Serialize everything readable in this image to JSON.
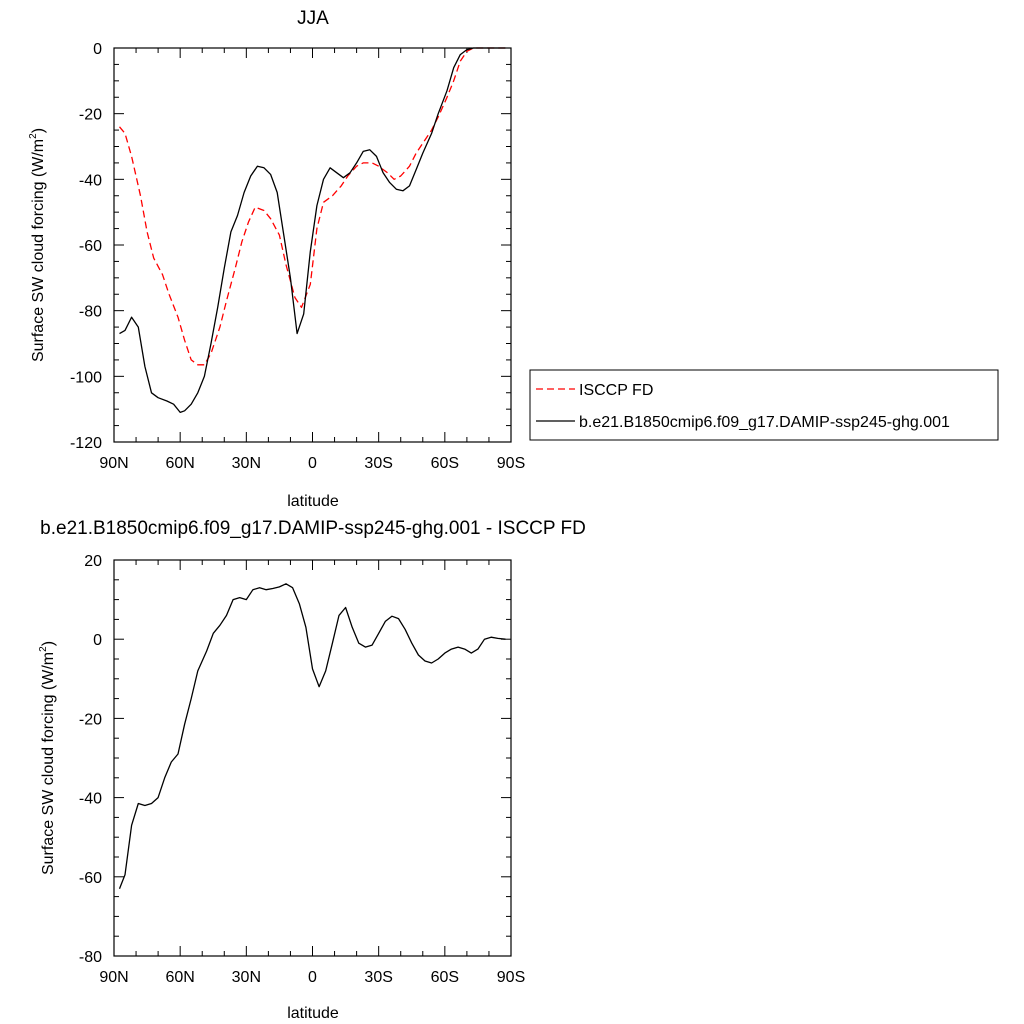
{
  "chart_data": [
    {
      "type": "line",
      "title": "JJA",
      "xlabel": "latitude",
      "ylabel": "Surface SW cloud forcing (W/m²)",
      "ylabel_main": "Surface SW cloud forcing (W/m",
      "ylabel_sup": "2",
      "ylabel_end": ")",
      "xlim": [
        90,
        -90
      ],
      "ylim": [
        -120,
        0
      ],
      "x_ticks": [
        90,
        60,
        30,
        0,
        -30,
        -60,
        -90
      ],
      "x_tick_labels": [
        "90N",
        "60N",
        "30N",
        "0",
        "30S",
        "60S",
        "90S"
      ],
      "y_ticks": [
        0,
        -20,
        -40,
        -60,
        -80,
        -100,
        -120
      ],
      "y_tick_labels": [
        "0",
        "-20",
        "-40",
        "-60",
        "-80",
        "-100",
        "-120"
      ],
      "grid": false,
      "legend_placement": "right",
      "series": [
        {
          "name": "ISCCP FD",
          "color": "#ff0000",
          "dash": "dashed",
          "points": [
            [
              87.5,
              -24
            ],
            [
              85,
              -26
            ],
            [
              82,
              -33
            ],
            [
              78,
              -45
            ],
            [
              75,
              -56
            ],
            [
              72,
              -64
            ],
            [
              68,
              -69
            ],
            [
              65,
              -75
            ],
            [
              61,
              -82
            ],
            [
              58,
              -89
            ],
            [
              55,
              -95
            ],
            [
              52,
              -96.5
            ],
            [
              49,
              -96.5
            ],
            [
              46,
              -93
            ],
            [
              42,
              -85
            ],
            [
              39,
              -77
            ],
            [
              35,
              -67
            ],
            [
              32,
              -59
            ],
            [
              29,
              -53
            ],
            [
              26,
              -48.5
            ],
            [
              22,
              -49.5
            ],
            [
              19,
              -52
            ],
            [
              15,
              -57
            ],
            [
              12,
              -66
            ],
            [
              8,
              -76
            ],
            [
              5,
              -79
            ],
            [
              1,
              -72
            ],
            [
              -2,
              -55
            ],
            [
              -5,
              -47
            ],
            [
              -9,
              -45
            ],
            [
              -13,
              -42
            ],
            [
              -16,
              -39
            ],
            [
              -20,
              -36
            ],
            [
              -23,
              -35
            ],
            [
              -27,
              -35
            ],
            [
              -30,
              -36
            ],
            [
              -34,
              -38
            ],
            [
              -37,
              -40
            ],
            [
              -40,
              -39
            ],
            [
              -44,
              -36
            ],
            [
              -47,
              -32
            ],
            [
              -50,
              -29
            ],
            [
              -54,
              -25
            ],
            [
              -57,
              -21
            ],
            [
              -61,
              -15
            ],
            [
              -64,
              -10
            ],
            [
              -67,
              -4
            ],
            [
              -70,
              -1
            ],
            [
              -73,
              0
            ],
            [
              -77,
              0
            ],
            [
              -80,
              0
            ],
            [
              -84,
              0
            ],
            [
              -87.5,
              0
            ]
          ]
        },
        {
          "name": "b.e21.B1850cmip6.f09_g17.DAMIP-ssp245-ghg.001",
          "color": "#000000",
          "dash": "solid",
          "points": [
            [
              87.5,
              -87
            ],
            [
              85,
              -86
            ],
            [
              82,
              -82
            ],
            [
              79,
              -85
            ],
            [
              76,
              -97
            ],
            [
              73,
              -105
            ],
            [
              70,
              -106.5
            ],
            [
              66,
              -107.5
            ],
            [
              63,
              -108.5
            ],
            [
              60,
              -111
            ],
            [
              58,
              -110.5
            ],
            [
              55,
              -108.5
            ],
            [
              52,
              -105
            ],
            [
              49,
              -100
            ],
            [
              46,
              -90
            ],
            [
              43,
              -79
            ],
            [
              40,
              -67
            ],
            [
              37,
              -56
            ],
            [
              34,
              -51
            ],
            [
              31,
              -44
            ],
            [
              28,
              -39
            ],
            [
              25,
              -36
            ],
            [
              22,
              -36.5
            ],
            [
              19,
              -38.5
            ],
            [
              16,
              -44
            ],
            [
              13,
              -57
            ],
            [
              10,
              -70
            ],
            [
              7,
              -87
            ],
            [
              4,
              -81
            ],
            [
              1,
              -62
            ],
            [
              -2,
              -48
            ],
            [
              -5,
              -40
            ],
            [
              -8,
              -36.5
            ],
            [
              -11,
              -38
            ],
            [
              -14,
              -39.5
            ],
            [
              -17,
              -38
            ],
            [
              -20,
              -35
            ],
            [
              -23,
              -31.5
            ],
            [
              -26,
              -31
            ],
            [
              -29,
              -33
            ],
            [
              -32,
              -38
            ],
            [
              -35,
              -41
            ],
            [
              -38,
              -43
            ],
            [
              -41,
              -43.5
            ],
            [
              -44,
              -42
            ],
            [
              -47,
              -37
            ],
            [
              -50,
              -32
            ],
            [
              -54,
              -26
            ],
            [
              -57,
              -20
            ],
            [
              -61,
              -13
            ],
            [
              -64,
              -6
            ],
            [
              -67,
              -2
            ],
            [
              -70,
              -0.5
            ],
            [
              -73,
              0
            ],
            [
              -77,
              0
            ],
            [
              -80,
              0
            ],
            [
              -84,
              0
            ],
            [
              -87.5,
              0
            ]
          ]
        }
      ]
    },
    {
      "type": "line",
      "title": "b.e21.B1850cmip6.f09_g17.DAMIP-ssp245-ghg.001 - ISCCP FD",
      "xlabel": "latitude",
      "ylabel": "Surface SW cloud forcing (W/m²)",
      "ylabel_main": "Surface SW cloud forcing (W/m",
      "ylabel_sup": "2",
      "ylabel_end": ")",
      "xlim": [
        90,
        -90
      ],
      "ylim": [
        -80,
        20
      ],
      "x_ticks": [
        90,
        60,
        30,
        0,
        -30,
        -60,
        -90
      ],
      "x_tick_labels": [
        "90N",
        "60N",
        "30N",
        "0",
        "30S",
        "60S",
        "90S"
      ],
      "y_ticks": [
        20,
        0,
        -20,
        -40,
        -60,
        -80
      ],
      "y_tick_labels": [
        "20",
        "0",
        "-20",
        "-40",
        "-60",
        "-80"
      ],
      "grid": false,
      "series": [
        {
          "color": "#000000",
          "dash": "solid",
          "points": [
            [
              87.5,
              -63
            ],
            [
              85,
              -59.5
            ],
            [
              82,
              -47
            ],
            [
              79,
              -41.5
            ],
            [
              76,
              -42
            ],
            [
              73,
              -41.5
            ],
            [
              70,
              -40
            ],
            [
              67,
              -35
            ],
            [
              64,
              -31
            ],
            [
              61,
              -29
            ],
            [
              58,
              -21.5
            ],
            [
              55,
              -15
            ],
            [
              52,
              -8
            ],
            [
              48,
              -3
            ],
            [
              45,
              1.5
            ],
            [
              42,
              3.5
            ],
            [
              39,
              6
            ],
            [
              36,
              10
            ],
            [
              33,
              10.5
            ],
            [
              30,
              10
            ],
            [
              27,
              12.5
            ],
            [
              24,
              13
            ],
            [
              21,
              12.5
            ],
            [
              18,
              12.8
            ],
            [
              15,
              13.2
            ],
            [
              12,
              14
            ],
            [
              9,
              13
            ],
            [
              6,
              9
            ],
            [
              3,
              3
            ],
            [
              0,
              -7.5
            ],
            [
              -3,
              -12
            ],
            [
              -6,
              -8
            ],
            [
              -9,
              -1
            ],
            [
              -12,
              6
            ],
            [
              -15,
              8
            ],
            [
              -18,
              3
            ],
            [
              -21,
              -1
            ],
            [
              -24,
              -2
            ],
            [
              -27,
              -1.5
            ],
            [
              -30,
              1.5
            ],
            [
              -33,
              4.5
            ],
            [
              -36,
              5.8
            ],
            [
              -39,
              5.2
            ],
            [
              -42,
              2.5
            ],
            [
              -45,
              -1
            ],
            [
              -48,
              -4
            ],
            [
              -51,
              -5.5
            ],
            [
              -54,
              -6
            ],
            [
              -57,
              -5
            ],
            [
              -60,
              -3.5
            ],
            [
              -63,
              -2.5
            ],
            [
              -66,
              -2
            ],
            [
              -69,
              -2.5
            ],
            [
              -72,
              -3.5
            ],
            [
              -75,
              -2.5
            ],
            [
              -78,
              0
            ],
            [
              -81,
              0.5
            ],
            [
              -84,
              0.2
            ],
            [
              -87.5,
              0
            ]
          ]
        }
      ]
    }
  ]
}
